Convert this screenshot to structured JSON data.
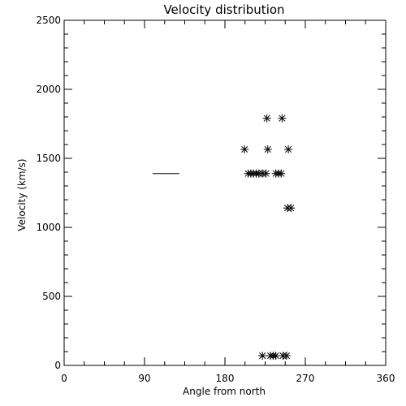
{
  "chart_data": {
    "type": "scatter",
    "title": "Velocity distribution",
    "xlabel": "Angle from north",
    "ylabel": "Velocity (km/s)",
    "xlim": [
      0,
      360
    ],
    "ylim": [
      0,
      2500
    ],
    "xticks": [
      0,
      90,
      180,
      270,
      360
    ],
    "yticks": [
      0,
      500,
      1000,
      1500,
      2000,
      2500
    ],
    "grid": false,
    "marker": "asterisk",
    "color": "#000000",
    "points": [
      {
        "x": 202,
        "y": 1565
      },
      {
        "x": 227,
        "y": 1790
      },
      {
        "x": 244,
        "y": 1790
      },
      {
        "x": 228,
        "y": 1565
      },
      {
        "x": 251,
        "y": 1565
      },
      {
        "x": 206,
        "y": 1390
      },
      {
        "x": 209,
        "y": 1390
      },
      {
        "x": 212,
        "y": 1390
      },
      {
        "x": 215,
        "y": 1390
      },
      {
        "x": 218,
        "y": 1390
      },
      {
        "x": 222,
        "y": 1390
      },
      {
        "x": 226,
        "y": 1390
      },
      {
        "x": 237,
        "y": 1390
      },
      {
        "x": 240,
        "y": 1390
      },
      {
        "x": 243,
        "y": 1390
      },
      {
        "x": 250,
        "y": 1140
      },
      {
        "x": 254,
        "y": 1140
      },
      {
        "x": 222,
        "y": 70
      },
      {
        "x": 231,
        "y": 70
      },
      {
        "x": 234,
        "y": 70
      },
      {
        "x": 237,
        "y": 70
      },
      {
        "x": 245,
        "y": 70
      },
      {
        "x": 249,
        "y": 70
      }
    ],
    "segments": [
      {
        "x0": 99,
        "x1": 129,
        "y": 1390
      }
    ]
  }
}
